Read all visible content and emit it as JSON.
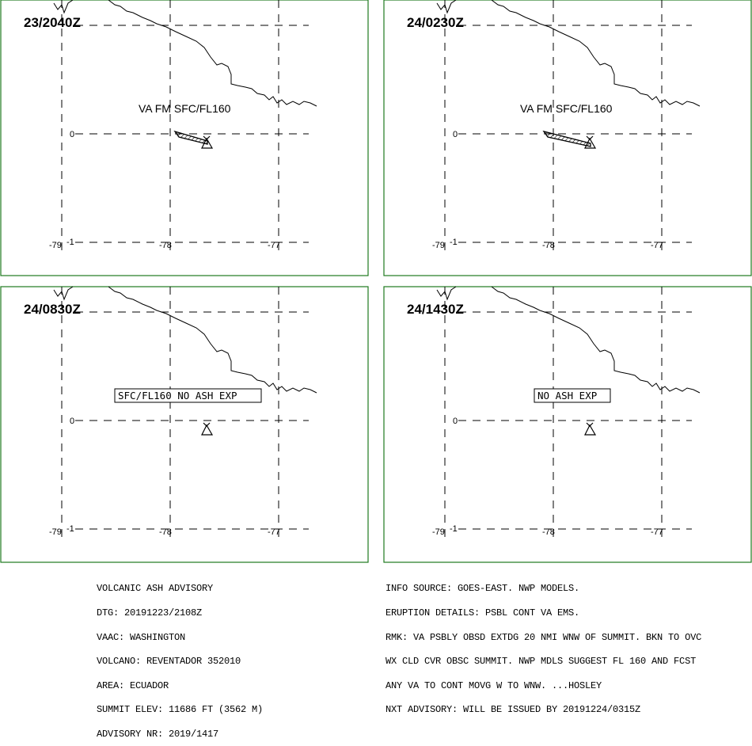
{
  "panels": [
    {
      "time": "23/2040Z",
      "ash_label": "VA FM SFC/FL160",
      "ash_label_boxed": false,
      "has_plume": true
    },
    {
      "time": "24/0230Z",
      "ash_label": "VA FM SFC/FL160",
      "ash_label_boxed": false,
      "has_plume": true
    },
    {
      "time": "24/0830Z",
      "ash_label": "SFC/FL160 NO ASH EXP",
      "ash_label_boxed": true,
      "has_plume": false
    },
    {
      "time": "24/1430Z",
      "ash_label": "NO ASH EXP",
      "ash_label_boxed": true,
      "has_plume": false
    }
  ],
  "axis_labels": {
    "lat_zero": "0",
    "lat_minus1": "-1",
    "lon_79": "-79",
    "lon_78": "-78",
    "lon_77": "-77"
  },
  "advisory_left": [
    "VOLCANIC ASH ADVISORY",
    "DTG: 20191223/2108Z",
    "VAAC: WASHINGTON",
    "VOLCANO: REVENTADOR 352010",
    "AREA: ECUADOR",
    "SUMMIT ELEV: 11686 FT (3562 M)",
    "ADVISORY NR: 2019/1417"
  ],
  "advisory_right": [
    "INFO SOURCE: GOES-EAST. NWP MODELS.",
    "ERUPTION DETAILS: PSBL CONT VA EMS.",
    "RMK: VA PSBLY OBSD EXTDG 20 NMI WNW OF SUMMIT. BKN TO OVC",
    "WX CLD CVR OBSC SUMMIT. NWP MDLS SUGGEST FL 160 AND FCST",
    "ANY VA TO CONT MOVG W TO WNW. ...HOSLEY",
    "NXT ADVISORY: WILL BE ISSUED BY 20191224/0315Z"
  ],
  "colors": {
    "frame": "#1e7a1e",
    "ink": "#000000",
    "background": "#ffffff"
  }
}
